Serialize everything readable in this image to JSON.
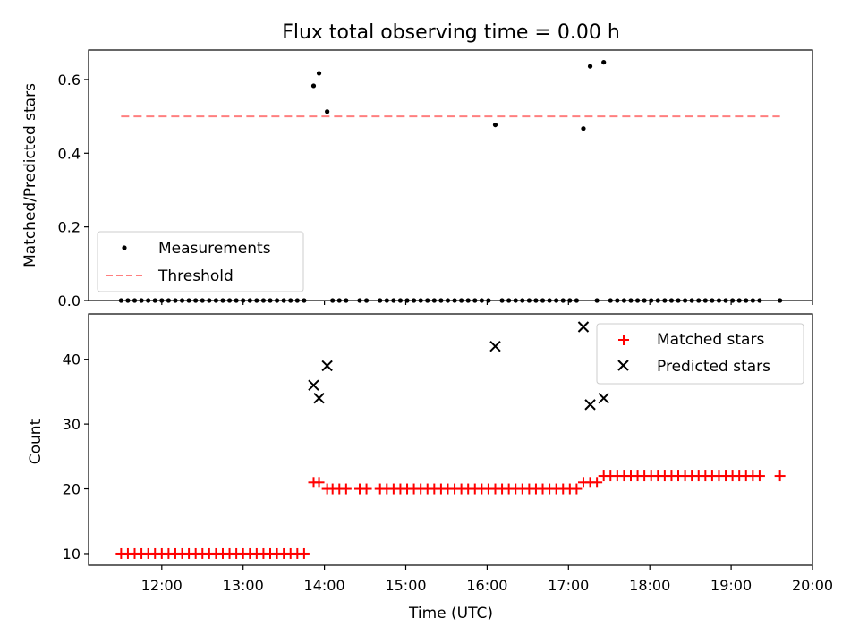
{
  "chart_data": [
    {
      "type": "scatter",
      "title": "Flux total observing time = 0.00 h",
      "xlabel": "",
      "ylabel": "Matched/Predicted stars",
      "xlim": [
        "11:06",
        "20:00"
      ],
      "ylim": [
        0,
        0.68
      ],
      "yticks": [
        "0.0",
        "0.2",
        "0.4",
        "0.6"
      ],
      "xticks": [
        "12:00",
        "13:00",
        "14:00",
        "15:00",
        "16:00",
        "17:00",
        "18:00",
        "19:00",
        "20:00"
      ],
      "legend": {
        "placement": "lower-left",
        "entries": [
          "Measurements",
          "Threshold"
        ]
      },
      "threshold": {
        "name": "Threshold",
        "value": 0.5,
        "x_from": "11:30",
        "x_to": "19:36",
        "color": "#ff7f7f",
        "style": "dashed"
      },
      "series": [
        {
          "name": "Measurements",
          "color": "#000000",
          "marker": "dot",
          "points": [
            [
              "11:30",
              0
            ],
            [
              "11:35",
              0
            ],
            [
              "11:40",
              0
            ],
            [
              "11:45",
              0
            ],
            [
              "11:50",
              0
            ],
            [
              "11:55",
              0
            ],
            [
              "12:00",
              0
            ],
            [
              "12:05",
              0
            ],
            [
              "12:10",
              0
            ],
            [
              "12:15",
              0
            ],
            [
              "12:20",
              0
            ],
            [
              "12:25",
              0
            ],
            [
              "12:30",
              0
            ],
            [
              "12:35",
              0
            ],
            [
              "12:40",
              0
            ],
            [
              "12:45",
              0
            ],
            [
              "12:50",
              0
            ],
            [
              "12:55",
              0
            ],
            [
              "13:00",
              0
            ],
            [
              "13:05",
              0
            ],
            [
              "13:10",
              0
            ],
            [
              "13:15",
              0
            ],
            [
              "13:20",
              0
            ],
            [
              "13:25",
              0
            ],
            [
              "13:30",
              0
            ],
            [
              "13:35",
              0
            ],
            [
              "13:40",
              0
            ],
            [
              "13:45",
              0
            ],
            [
              "13:52",
              0.583
            ],
            [
              "13:56",
              0.617
            ],
            [
              "14:02",
              0.513
            ],
            [
              "14:06",
              0
            ],
            [
              "14:11",
              0
            ],
            [
              "14:16",
              0
            ],
            [
              "14:26",
              0
            ],
            [
              "14:31",
              0
            ],
            [
              "14:41",
              0
            ],
            [
              "14:46",
              0
            ],
            [
              "14:51",
              0
            ],
            [
              "14:56",
              0
            ],
            [
              "15:01",
              0
            ],
            [
              "15:06",
              0
            ],
            [
              "15:11",
              0
            ],
            [
              "15:16",
              0
            ],
            [
              "15:21",
              0
            ],
            [
              "15:26",
              0
            ],
            [
              "15:31",
              0
            ],
            [
              "15:36",
              0
            ],
            [
              "15:41",
              0
            ],
            [
              "15:46",
              0
            ],
            [
              "15:51",
              0
            ],
            [
              "15:56",
              0
            ],
            [
              "16:01",
              0
            ],
            [
              "16:06",
              0.477
            ],
            [
              "16:11",
              0
            ],
            [
              "16:16",
              0
            ],
            [
              "16:21",
              0
            ],
            [
              "16:26",
              0
            ],
            [
              "16:31",
              0
            ],
            [
              "16:36",
              0
            ],
            [
              "16:41",
              0
            ],
            [
              "16:46",
              0
            ],
            [
              "16:51",
              0
            ],
            [
              "16:56",
              0
            ],
            [
              "17:01",
              0
            ],
            [
              "17:06",
              0
            ],
            [
              "17:11",
              0.467
            ],
            [
              "17:16",
              0.636
            ],
            [
              "17:21",
              0
            ],
            [
              "17:26",
              0.647
            ],
            [
              "17:31",
              0
            ],
            [
              "17:36",
              0
            ],
            [
              "17:41",
              0
            ],
            [
              "17:46",
              0
            ],
            [
              "17:51",
              0
            ],
            [
              "17:56",
              0
            ],
            [
              "18:01",
              0
            ],
            [
              "18:06",
              0
            ],
            [
              "18:11",
              0
            ],
            [
              "18:16",
              0
            ],
            [
              "18:21",
              0
            ],
            [
              "18:26",
              0
            ],
            [
              "18:31",
              0
            ],
            [
              "18:36",
              0
            ],
            [
              "18:41",
              0
            ],
            [
              "18:46",
              0
            ],
            [
              "18:51",
              0
            ],
            [
              "18:56",
              0
            ],
            [
              "19:01",
              0
            ],
            [
              "19:06",
              0
            ],
            [
              "19:11",
              0
            ],
            [
              "19:16",
              0
            ],
            [
              "19:21",
              0
            ],
            [
              "19:36",
              0
            ]
          ]
        }
      ]
    },
    {
      "type": "scatter",
      "title": "",
      "xlabel": "Time (UTC)",
      "ylabel": "Count",
      "xlim": [
        "11:06",
        "20:00"
      ],
      "ylim": [
        8.2,
        47
      ],
      "yticks": [
        "10",
        "20",
        "30",
        "40"
      ],
      "xticks": [
        "12:00",
        "13:00",
        "14:00",
        "15:00",
        "16:00",
        "17:00",
        "18:00",
        "19:00",
        "20:00"
      ],
      "legend": {
        "placement": "top-right",
        "entries": [
          "Matched stars",
          "Predicted stars"
        ]
      },
      "series": [
        {
          "name": "Matched stars",
          "color": "#ff0000",
          "marker": "plus",
          "points": [
            [
              "11:30",
              10
            ],
            [
              "11:35",
              10
            ],
            [
              "11:40",
              10
            ],
            [
              "11:45",
              10
            ],
            [
              "11:50",
              10
            ],
            [
              "11:55",
              10
            ],
            [
              "12:00",
              10
            ],
            [
              "12:05",
              10
            ],
            [
              "12:10",
              10
            ],
            [
              "12:15",
              10
            ],
            [
              "12:20",
              10
            ],
            [
              "12:25",
              10
            ],
            [
              "12:30",
              10
            ],
            [
              "12:35",
              10
            ],
            [
              "12:40",
              10
            ],
            [
              "12:45",
              10
            ],
            [
              "12:50",
              10
            ],
            [
              "12:55",
              10
            ],
            [
              "13:00",
              10
            ],
            [
              "13:05",
              10
            ],
            [
              "13:10",
              10
            ],
            [
              "13:15",
              10
            ],
            [
              "13:20",
              10
            ],
            [
              "13:25",
              10
            ],
            [
              "13:30",
              10
            ],
            [
              "13:35",
              10
            ],
            [
              "13:40",
              10
            ],
            [
              "13:45",
              10
            ],
            [
              "13:52",
              21
            ],
            [
              "13:56",
              21
            ],
            [
              "14:02",
              20
            ],
            [
              "14:06",
              20
            ],
            [
              "14:11",
              20
            ],
            [
              "14:16",
              20
            ],
            [
              "14:26",
              20
            ],
            [
              "14:31",
              20
            ],
            [
              "14:41",
              20
            ],
            [
              "14:46",
              20
            ],
            [
              "14:51",
              20
            ],
            [
              "14:56",
              20
            ],
            [
              "15:01",
              20
            ],
            [
              "15:06",
              20
            ],
            [
              "15:11",
              20
            ],
            [
              "15:16",
              20
            ],
            [
              "15:21",
              20
            ],
            [
              "15:26",
              20
            ],
            [
              "15:31",
              20
            ],
            [
              "15:36",
              20
            ],
            [
              "15:41",
              20
            ],
            [
              "15:46",
              20
            ],
            [
              "15:51",
              20
            ],
            [
              "15:56",
              20
            ],
            [
              "16:01",
              20
            ],
            [
              "16:06",
              20
            ],
            [
              "16:11",
              20
            ],
            [
              "16:16",
              20
            ],
            [
              "16:21",
              20
            ],
            [
              "16:26",
              20
            ],
            [
              "16:31",
              20
            ],
            [
              "16:36",
              20
            ],
            [
              "16:41",
              20
            ],
            [
              "16:46",
              20
            ],
            [
              "16:51",
              20
            ],
            [
              "16:56",
              20
            ],
            [
              "17:01",
              20
            ],
            [
              "17:06",
              20
            ],
            [
              "17:11",
              21
            ],
            [
              "17:16",
              21
            ],
            [
              "17:21",
              21
            ],
            [
              "17:26",
              22
            ],
            [
              "17:31",
              22
            ],
            [
              "17:36",
              22
            ],
            [
              "17:41",
              22
            ],
            [
              "17:46",
              22
            ],
            [
              "17:51",
              22
            ],
            [
              "17:56",
              22
            ],
            [
              "18:01",
              22
            ],
            [
              "18:06",
              22
            ],
            [
              "18:11",
              22
            ],
            [
              "18:16",
              22
            ],
            [
              "18:21",
              22
            ],
            [
              "18:26",
              22
            ],
            [
              "18:31",
              22
            ],
            [
              "18:36",
              22
            ],
            [
              "18:41",
              22
            ],
            [
              "18:46",
              22
            ],
            [
              "18:51",
              22
            ],
            [
              "18:56",
              22
            ],
            [
              "19:01",
              22
            ],
            [
              "19:06",
              22
            ],
            [
              "19:11",
              22
            ],
            [
              "19:16",
              22
            ],
            [
              "19:21",
              22
            ],
            [
              "19:36",
              22
            ]
          ]
        },
        {
          "name": "Predicted stars",
          "color": "#000000",
          "marker": "x",
          "points": [
            [
              "13:52",
              36
            ],
            [
              "13:56",
              34
            ],
            [
              "14:02",
              39
            ],
            [
              "16:06",
              42
            ],
            [
              "17:11",
              45
            ],
            [
              "17:16",
              33
            ],
            [
              "17:26",
              34
            ]
          ]
        }
      ]
    }
  ]
}
